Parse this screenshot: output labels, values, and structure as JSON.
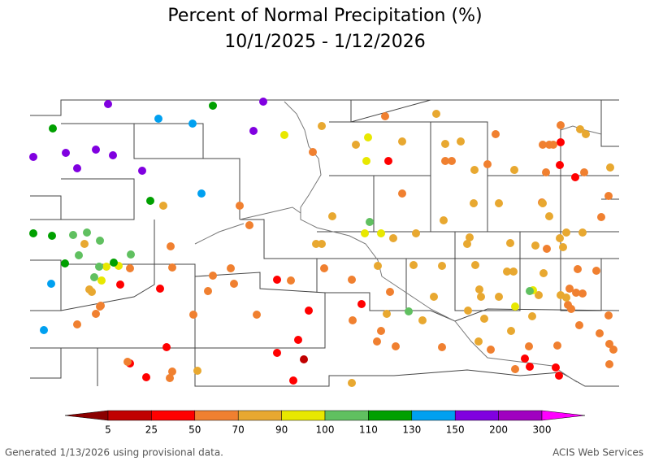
{
  "header": {
    "title": "Percent of Normal Precipitation (%)",
    "subtitle": "10/1/2025 - 1/12/2026"
  },
  "legend": {
    "ticks": [
      5,
      25,
      50,
      70,
      90,
      100,
      110,
      130,
      150,
      200,
      300
    ],
    "colors": [
      "#8b0000",
      "#c00000",
      "#ff0000",
      "#f08030",
      "#e8a830",
      "#e8e800",
      "#60c060",
      "#00a000",
      "#00a0f0",
      "#8000e0",
      "#a000c0",
      "#ff00ff"
    ]
  },
  "footer": {
    "left": "Generated 1/13/2026 using provisional data.",
    "right": "ACIS Web Services"
  }
}
